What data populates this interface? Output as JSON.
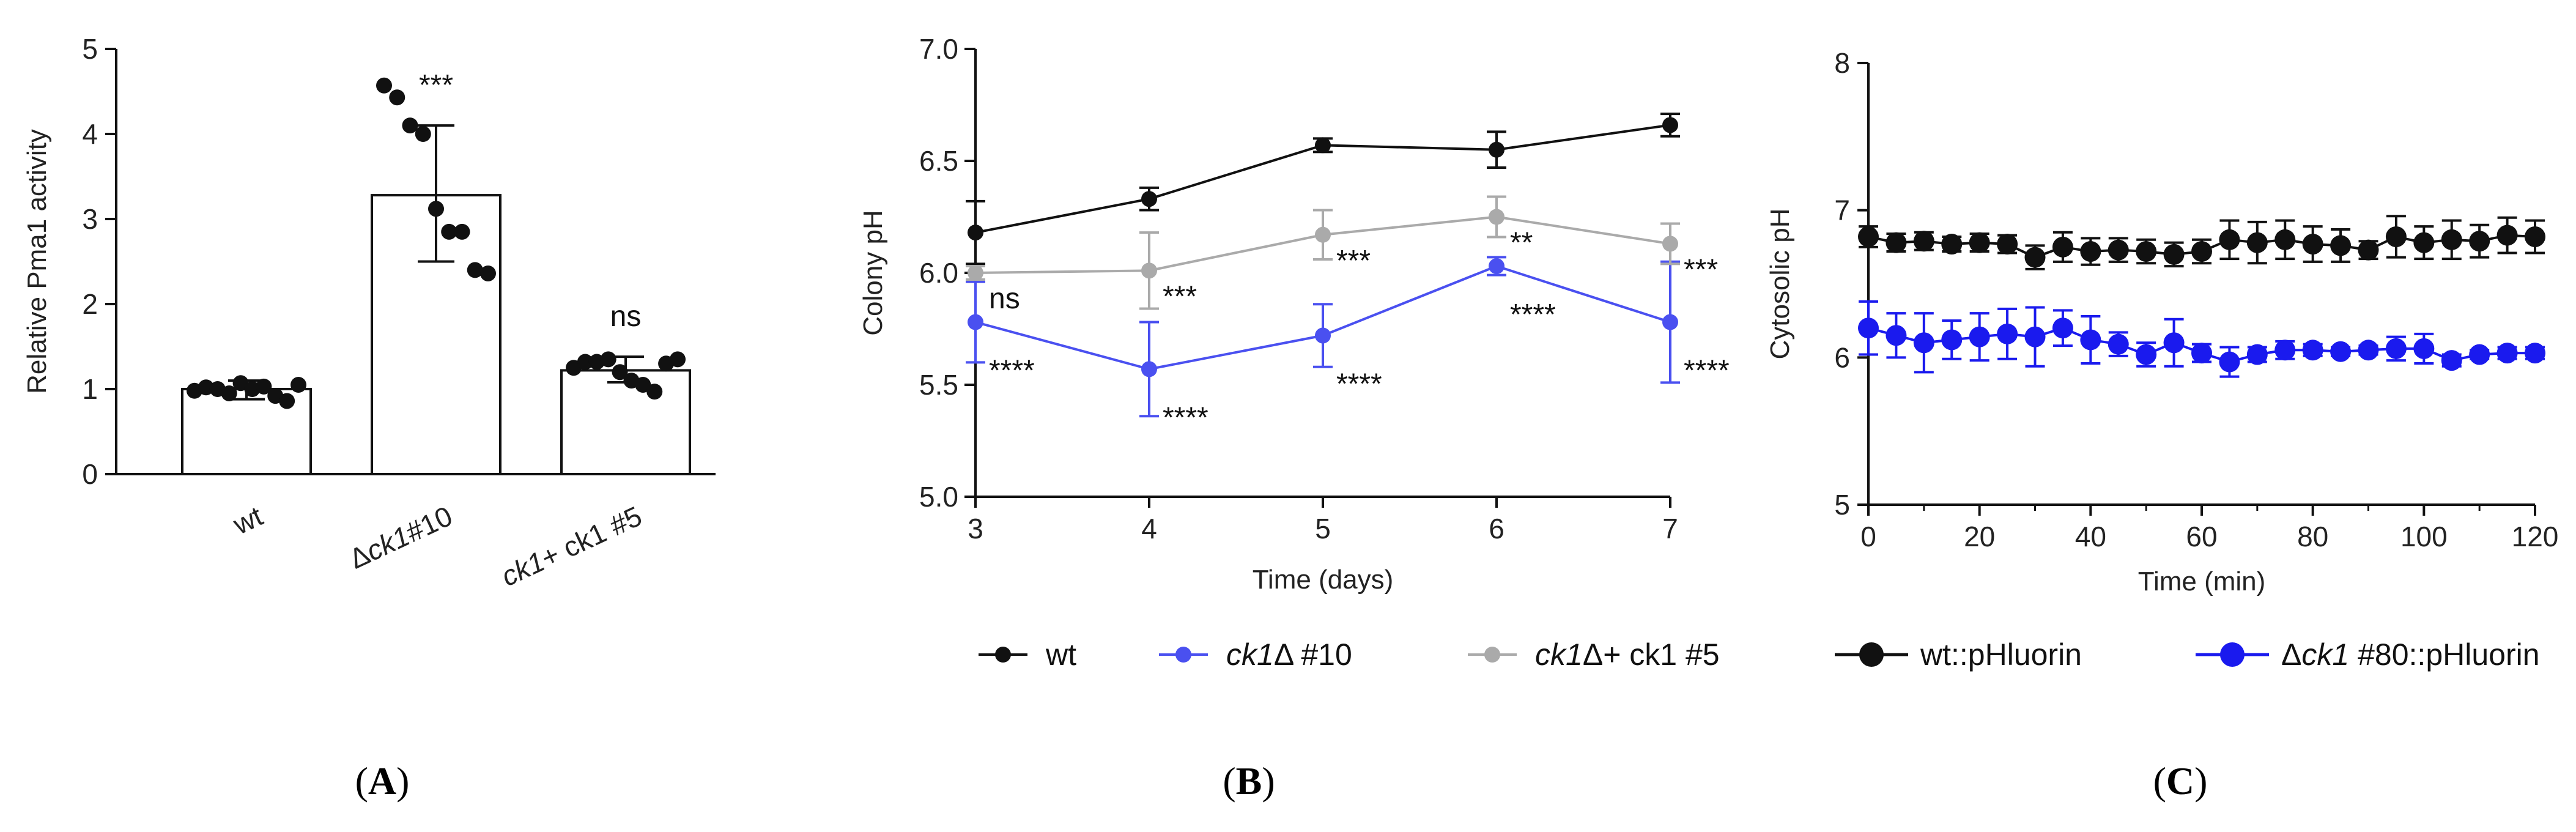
{
  "panels": [
    {
      "label": "A",
      "chart_data": {
        "type": "bar",
        "ylabel": "Relative Pma1 activity",
        "ylim": [
          0,
          5
        ],
        "yticks": [
          0,
          1,
          2,
          3,
          4,
          5
        ],
        "categories": [
          {
            "pre": "wt",
            "ital": "",
            "post": ""
          },
          {
            "pre": "Δ",
            "ital": "ck1",
            "post": "#10"
          },
          {
            "pre": "",
            "ital": "ck1",
            "post": "+ ck1 #5"
          }
        ],
        "values": [
          1.0,
          3.28,
          1.22
        ],
        "error": [
          [
            0.88,
            1.1
          ],
          [
            2.5,
            4.1
          ],
          [
            1.08,
            1.38
          ]
        ],
        "points": [
          [
            0.98,
            1.02,
            1.0,
            0.95,
            1.07,
            1.0,
            1.03,
            0.92,
            0.86,
            1.05
          ],
          [
            4.57,
            4.43,
            4.1,
            4.0,
            3.12,
            2.85,
            2.85,
            2.4,
            2.36
          ],
          [
            1.25,
            1.32,
            1.32,
            1.35,
            1.2,
            1.1,
            1.05,
            0.97,
            1.3,
            1.35
          ]
        ],
        "significance": [
          "",
          "***",
          "ns"
        ],
        "bar_color": "#ffffff",
        "edge_color": "#111111"
      }
    },
    {
      "label": "B",
      "chart_data": {
        "type": "line",
        "xlabel": "Time (days)",
        "ylabel": "Colony pH",
        "xlim": [
          3,
          7
        ],
        "ylim": [
          5.0,
          7.0
        ],
        "xticks": [
          3,
          4,
          5,
          6,
          7
        ],
        "yticks": [
          "5.0",
          "5.5",
          "6.0",
          "6.5",
          "7.0"
        ],
        "x": [
          3,
          4,
          5,
          6,
          7
        ],
        "series": [
          {
            "name": "wt",
            "ital": "",
            "post": "",
            "color": "#111111",
            "values": [
              6.18,
              6.33,
              6.57,
              6.55,
              6.66
            ],
            "err": [
              0.14,
              0.05,
              0.03,
              0.08,
              0.05
            ],
            "sig": [
              "",
              "",
              "",
              "",
              ""
            ]
          },
          {
            "name": "",
            "ital": "ck1",
            "post": "Δ #10",
            "color": "#4a50f0",
            "values": [
              5.78,
              5.57,
              5.72,
              6.03,
              5.78
            ],
            "err": [
              0.18,
              0.21,
              0.14,
              0.04,
              0.27
            ],
            "sig": [
              "****",
              "****",
              "****",
              "****",
              "****"
            ]
          },
          {
            "name": "",
            "ital": "ck1",
            "post": "Δ+ ck1 #5",
            "color": "#aaaaaa",
            "values": [
              6.0,
              6.01,
              6.17,
              6.25,
              6.13
            ],
            "err": [
              0.03,
              0.17,
              0.11,
              0.09,
              0.09
            ],
            "sig": [
              "ns",
              "***",
              "***",
              "**",
              "***"
            ]
          }
        ]
      }
    },
    {
      "label": "C",
      "chart_data": {
        "type": "line",
        "xlabel": "Time (min)",
        "ylabel": "Cytosolic pH",
        "xlim": [
          0,
          120
        ],
        "ylim": [
          5,
          8
        ],
        "xticks": [
          0,
          20,
          40,
          60,
          80,
          100,
          120
        ],
        "yticks": [
          5,
          6,
          7,
          8
        ],
        "x": [
          0,
          5,
          10,
          15,
          20,
          25,
          30,
          35,
          40,
          45,
          50,
          55,
          60,
          65,
          70,
          75,
          80,
          85,
          90,
          95,
          100,
          105,
          110,
          115,
          120
        ],
        "series": [
          {
            "name": "wt::pHluorin",
            "pre": "",
            "ital": "",
            "post": "",
            "color": "#111111",
            "values": [
              6.82,
              6.78,
              6.79,
              6.77,
              6.78,
              6.77,
              6.68,
              6.75,
              6.72,
              6.73,
              6.72,
              6.7,
              6.72,
              6.8,
              6.78,
              6.8,
              6.77,
              6.76,
              6.73,
              6.82,
              6.78,
              6.8,
              6.79,
              6.83,
              6.82
            ],
            "err": [
              0.07,
              0.06,
              0.06,
              0.05,
              0.06,
              0.06,
              0.08,
              0.1,
              0.09,
              0.08,
              0.08,
              0.08,
              0.08,
              0.13,
              0.14,
              0.13,
              0.12,
              0.11,
              0.06,
              0.14,
              0.11,
              0.13,
              0.11,
              0.12,
              0.11
            ]
          },
          {
            "name": "",
            "pre": "Δ",
            "ital": "ck1",
            "post": " #80::pHluorin",
            "color": "#1a1aee",
            "values": [
              6.2,
              6.15,
              6.1,
              6.12,
              6.14,
              6.16,
              6.14,
              6.2,
              6.12,
              6.09,
              6.02,
              6.1,
              6.03,
              5.97,
              6.02,
              6.05,
              6.05,
              6.04,
              6.05,
              6.06,
              6.06,
              5.98,
              6.02,
              6.03,
              6.03
            ],
            "err": [
              0.18,
              0.15,
              0.2,
              0.13,
              0.16,
              0.17,
              0.2,
              0.12,
              0.16,
              0.08,
              0.08,
              0.16,
              0.06,
              0.1,
              0.05,
              0.06,
              0.04,
              0.03,
              0.03,
              0.08,
              0.1,
              0.04,
              0.03,
              0.04,
              0.04
            ]
          }
        ]
      }
    }
  ]
}
